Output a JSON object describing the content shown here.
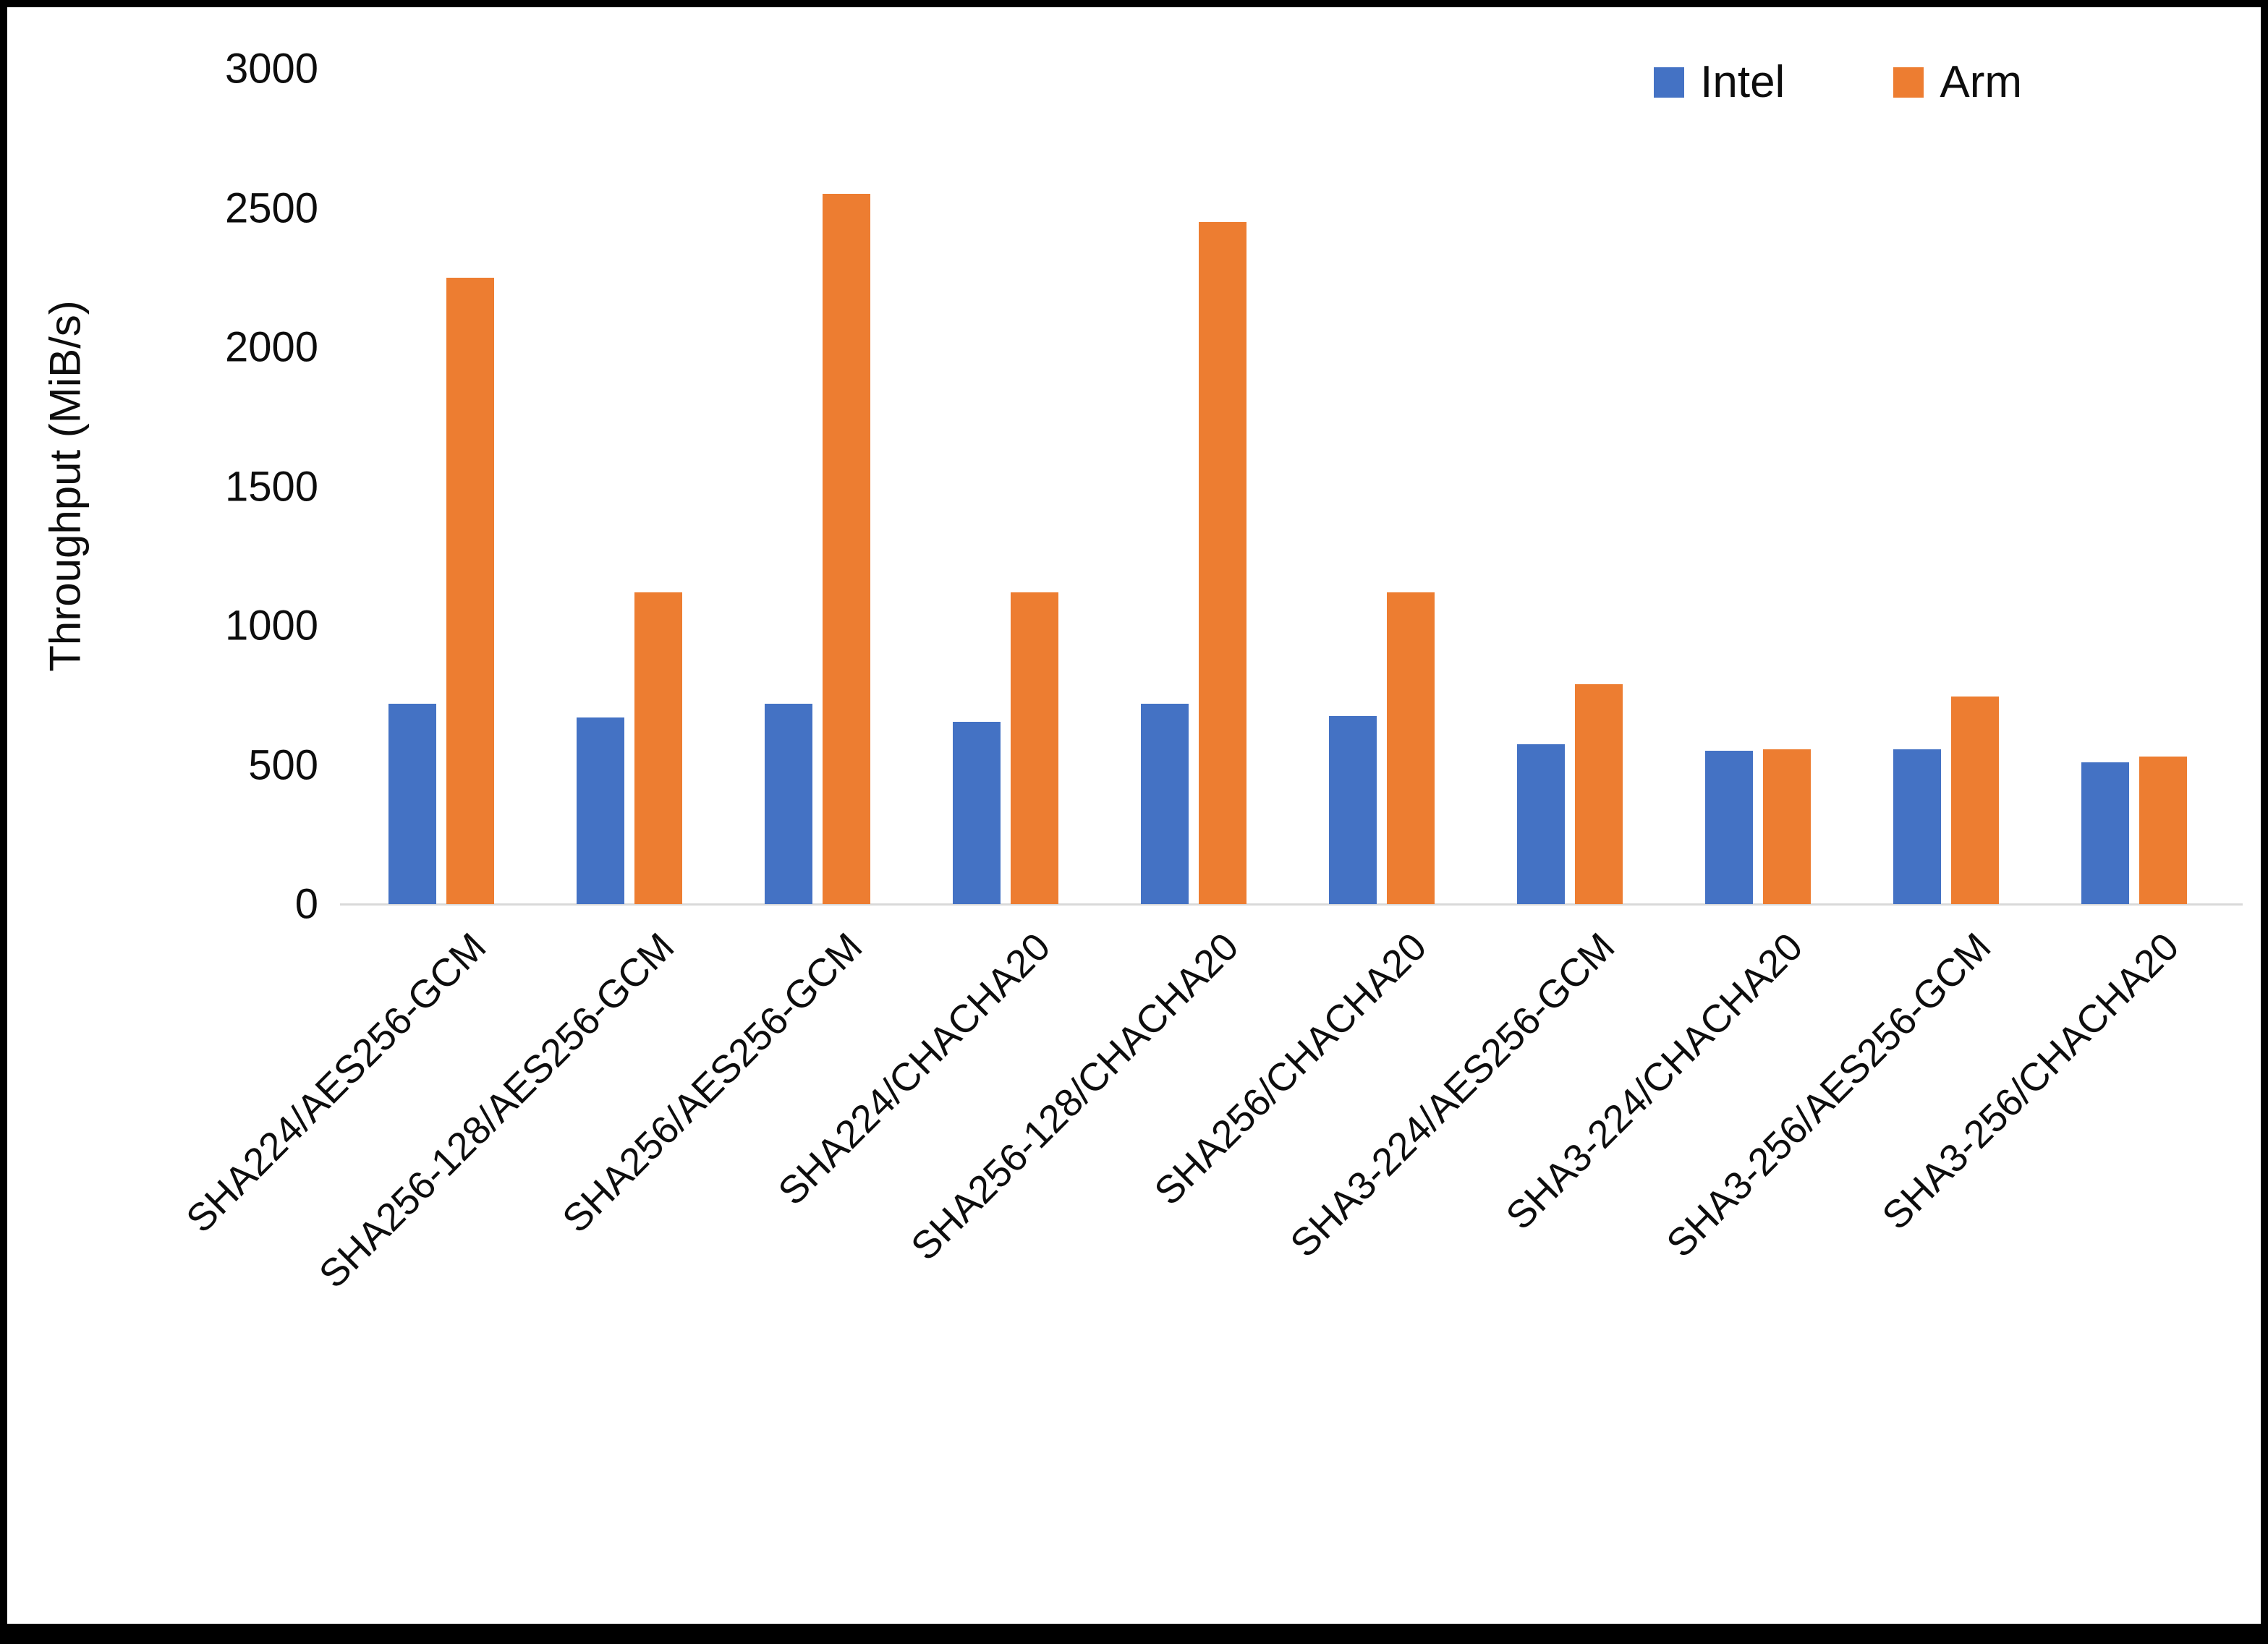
{
  "chart_data": {
    "type": "bar",
    "title": "",
    "xlabel": "",
    "ylabel": "Throughput (MiB/s)",
    "ylim": [
      0,
      3000
    ],
    "yticks": [
      0,
      500,
      1000,
      1500,
      2000,
      2500,
      3000
    ],
    "grid": false,
    "legend_position": "top-right",
    "categories": [
      "SHA224/AES256-GCM",
      "SHA256-128/AES256-GCM",
      "SHA256/AES256-GCM",
      "SHA224/CHACHA20",
      "SHA256-128/CHACHA20",
      "SHA256/CHACHA20",
      "SHA3-224/AES256-GCM",
      "SHA3-224/CHACHA20",
      "SHA3-256/AES256-GCM",
      "SHA3-256/CHACHA20"
    ],
    "series": [
      {
        "name": "Intel",
        "color": "#4472C4",
        "values": [
          720,
          670,
          720,
          655,
          720,
          675,
          575,
          550,
          555,
          510
        ]
      },
      {
        "name": "Arm",
        "color": "#ED7D31",
        "values": [
          2250,
          1120,
          2550,
          1120,
          2450,
          1120,
          790,
          555,
          745,
          530
        ]
      }
    ]
  },
  "colors": {
    "axis_line": "#d9d9d9",
    "text": "#0d0d0d",
    "frame_border": "#000000",
    "background": "#ffffff"
  }
}
